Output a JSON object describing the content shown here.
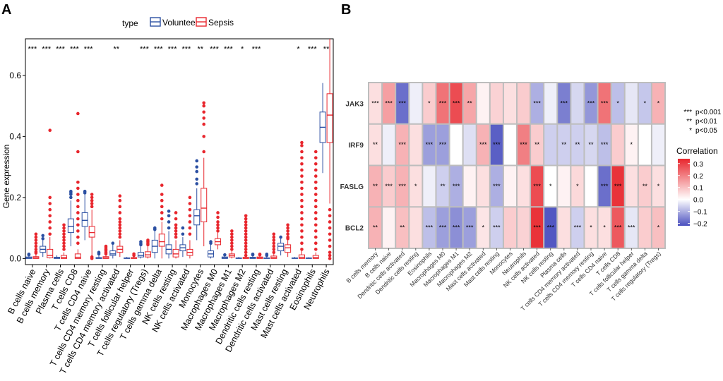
{
  "panel_a_letter": "A",
  "panel_b_letter": "B",
  "chart_data": [
    {
      "type": "box",
      "ylabel": "Gene expression",
      "yticks": [
        "0.0",
        "0.2",
        "0.4",
        "0.6"
      ],
      "ylim": [
        -0.02,
        0.72
      ],
      "legend": {
        "title": "type",
        "groups": [
          "Volunteer",
          "Sepsis"
        ],
        "colors": {
          "Volunteer": "#2b4fa2",
          "Sepsis": "#e8262d"
        }
      },
      "categories": [
        "B cells naive",
        "B cells memory",
        "Plasma cells",
        "T cells CD8",
        "T cells CD4 naive",
        "T cells CD4 memory resting",
        "T cells CD4 memory activated",
        "T cells follicular helper",
        "T cells regulatory (Tregs)",
        "T cells gamma delta",
        "NK cells resting",
        "NK cells activated",
        "Monocytes",
        "Macrophages M0",
        "Macrophages M1",
        "Macrophages M2",
        "Dendritic cells resting",
        "Dendritic cells activated",
        "Mast cells resting",
        "Mast cells activated",
        "Eosinophils",
        "Neutrophils"
      ],
      "significance": [
        "***",
        "***",
        "***",
        "***",
        "***",
        "",
        "**",
        "",
        "***",
        "***",
        "***",
        "***",
        "**",
        "***",
        "***",
        "*",
        "***",
        "",
        "",
        "*",
        "***",
        "**"
      ],
      "volunteer": [
        {
          "q1": 0.0,
          "med": 0.002,
          "q3": 0.005,
          "wlo": 0.0,
          "whi": 0.01,
          "out": [
            0.012,
            0.014
          ]
        },
        {
          "q1": 0.02,
          "med": 0.03,
          "q3": 0.04,
          "wlo": 0.005,
          "whi": 0.06,
          "out": [
            0.065,
            0.075
          ]
        },
        {
          "q1": 0.0,
          "med": 0.002,
          "q3": 0.004,
          "wlo": 0.0,
          "whi": 0.01,
          "out": []
        },
        {
          "q1": 0.085,
          "med": 0.105,
          "q3": 0.13,
          "wlo": 0.04,
          "whi": 0.19,
          "out": [
            0.2,
            0.21,
            0.215,
            0.22
          ]
        },
        {
          "q1": 0.105,
          "med": 0.125,
          "q3": 0.15,
          "wlo": 0.06,
          "whi": 0.21,
          "out": [
            0.215,
            0.22
          ]
        },
        {
          "q1": 0.0,
          "med": 0.001,
          "q3": 0.003,
          "wlo": 0.0,
          "whi": 0.01,
          "out": [
            0.015,
            0.02
          ]
        },
        {
          "q1": 0.01,
          "med": 0.015,
          "q3": 0.025,
          "wlo": 0.0,
          "whi": 0.045,
          "out": [
            0.05
          ]
        },
        {
          "q1": 0.0,
          "med": 0.001,
          "q3": 0.002,
          "wlo": 0.0,
          "whi": 0.005,
          "out": []
        },
        {
          "q1": 0.005,
          "med": 0.01,
          "q3": 0.02,
          "wlo": 0.0,
          "whi": 0.04,
          "out": [
            0.045,
            0.05,
            0.055
          ]
        },
        {
          "q1": 0.02,
          "med": 0.04,
          "q3": 0.06,
          "wlo": 0.0,
          "whi": 0.09,
          "out": [
            0.095,
            0.1
          ]
        },
        {
          "q1": 0.015,
          "med": 0.03,
          "q3": 0.045,
          "wlo": 0.0,
          "whi": 0.09,
          "out": [
            0.1,
            0.12,
            0.14,
            0.155
          ]
        },
        {
          "q1": 0.025,
          "med": 0.035,
          "q3": 0.045,
          "wlo": 0.005,
          "whi": 0.07,
          "out": [
            0.08,
            0.1
          ]
        },
        {
          "q1": 0.11,
          "med": 0.14,
          "q3": 0.16,
          "wlo": 0.06,
          "whi": 0.23,
          "out": [
            0.245,
            0.26,
            0.285,
            0.3,
            0.32
          ]
        },
        {
          "q1": 0.005,
          "med": 0.015,
          "q3": 0.025,
          "wlo": 0.0,
          "whi": 0.045,
          "out": [
            0.05,
            0.055
          ]
        },
        {
          "q1": 0.0,
          "med": 0.002,
          "q3": 0.005,
          "wlo": 0.0,
          "whi": 0.01,
          "out": [
            0.012
          ]
        },
        {
          "q1": 0.0,
          "med": 0.001,
          "q3": 0.002,
          "wlo": 0.0,
          "whi": 0.005,
          "out": []
        },
        {
          "q1": 0.0,
          "med": 0.002,
          "q3": 0.004,
          "wlo": 0.0,
          "whi": 0.01,
          "out": [
            0.012,
            0.014
          ]
        },
        {
          "q1": 0.0,
          "med": 0.001,
          "q3": 0.002,
          "wlo": 0.0,
          "whi": 0.005,
          "out": [
            0.01,
            0.014
          ]
        },
        {
          "q1": 0.025,
          "med": 0.04,
          "q3": 0.05,
          "wlo": 0.01,
          "whi": 0.065,
          "out": [
            0.07
          ]
        },
        {
          "q1": 0.0,
          "med": 0.001,
          "q3": 0.002,
          "wlo": 0.0,
          "whi": 0.005,
          "out": []
        },
        {
          "q1": 0.0,
          "med": 0.001,
          "q3": 0.002,
          "wlo": 0.0,
          "whi": 0.004,
          "out": []
        },
        {
          "q1": 0.38,
          "med": 0.43,
          "q3": 0.48,
          "wlo": 0.28,
          "whi": 0.575,
          "out": []
        }
      ],
      "sepsis": [
        {
          "q1": 0.0,
          "med": 0.002,
          "q3": 0.006,
          "wlo": 0.0,
          "whi": 0.014,
          "out": [
            0.018,
            0.022,
            0.03,
            0.04,
            0.05,
            0.06,
            0.07,
            0.08
          ]
        },
        {
          "q1": 0.002,
          "med": 0.01,
          "q3": 0.03,
          "wlo": 0.0,
          "whi": 0.07,
          "out": [
            0.08,
            0.1,
            0.12,
            0.14,
            0.16,
            0.18,
            0.2,
            0.42
          ]
        },
        {
          "q1": 0.0,
          "med": 0.003,
          "q3": 0.01,
          "wlo": 0.0,
          "whi": 0.02,
          "out": [
            0.03,
            0.04,
            0.05,
            0.06,
            0.07,
            0.08,
            0.09,
            0.1,
            0.11
          ]
        },
        {
          "q1": 0.0,
          "med": 0.004,
          "q3": 0.015,
          "wlo": 0.0,
          "whi": 0.03,
          "out": [
            0.05,
            0.07,
            0.09,
            0.11,
            0.13,
            0.15,
            0.17,
            0.19,
            0.21,
            0.23,
            0.25,
            0.35,
            0.475
          ]
        },
        {
          "q1": 0.07,
          "med": 0.085,
          "q3": 0.105,
          "wlo": 0.01,
          "whi": 0.16,
          "out": [
            0.0,
            0.005,
            0.17,
            0.18,
            0.19,
            0.2,
            0.21
          ]
        },
        {
          "q1": 0.0,
          "med": 0.002,
          "q3": 0.006,
          "wlo": 0.0,
          "whi": 0.012,
          "out": [
            0.015,
            0.02,
            0.025,
            0.03,
            0.035,
            0.04
          ]
        },
        {
          "q1": 0.02,
          "med": 0.03,
          "q3": 0.04,
          "wlo": 0.005,
          "whi": 0.06,
          "out": [
            0.07,
            0.08,
            0.09,
            0.1,
            0.11,
            0.12,
            0.13,
            0.15,
            0.17,
            0.19,
            0.205
          ]
        },
        {
          "q1": 0.0,
          "med": 0.001,
          "q3": 0.003,
          "wlo": 0.0,
          "whi": 0.006,
          "out": [
            0.01,
            0.015
          ]
        },
        {
          "q1": 0.005,
          "med": 0.012,
          "q3": 0.022,
          "wlo": 0.0,
          "whi": 0.04,
          "out": [
            0.045,
            0.05,
            0.055,
            0.06
          ]
        },
        {
          "q1": 0.04,
          "med": 0.055,
          "q3": 0.08,
          "wlo": 0.0,
          "whi": 0.12,
          "out": [
            0.13,
            0.15,
            0.17,
            0.19,
            0.21,
            0.24
          ]
        },
        {
          "q1": 0.005,
          "med": 0.015,
          "q3": 0.03,
          "wlo": 0.0,
          "whi": 0.06,
          "out": [
            0.07,
            0.08,
            0.09,
            0.1,
            0.11,
            0.13,
            0.15
          ]
        },
        {
          "q1": 0.01,
          "med": 0.02,
          "q3": 0.03,
          "wlo": 0.0,
          "whi": 0.06,
          "out": [
            0.08,
            0.1,
            0.12,
            0.14,
            0.16,
            0.18,
            0.2
          ]
        },
        {
          "q1": 0.12,
          "med": 0.165,
          "q3": 0.23,
          "wlo": 0.04,
          "whi": 0.33,
          "out": [
            0.35,
            0.4,
            0.44,
            0.46,
            0.48,
            0.5,
            0.51
          ]
        },
        {
          "q1": 0.045,
          "med": 0.055,
          "q3": 0.065,
          "wlo": 0.03,
          "whi": 0.085,
          "out": [
            0.09,
            0.1,
            0.11,
            0.12,
            0.135,
            0.15
          ]
        },
        {
          "q1": 0.005,
          "med": 0.01,
          "q3": 0.015,
          "wlo": 0.0,
          "whi": 0.025,
          "out": [
            0.03,
            0.04,
            0.05,
            0.06,
            0.07,
            0.08,
            0.09
          ]
        },
        {
          "q1": 0.0,
          "med": 0.001,
          "q3": 0.004,
          "wlo": 0.0,
          "whi": 0.008,
          "out": [
            0.01,
            0.02,
            0.03,
            0.04,
            0.05,
            0.06,
            0.07,
            0.08,
            0.09,
            0.1,
            0.11,
            0.12,
            0.13,
            0.14
          ]
        },
        {
          "q1": 0.0,
          "med": 0.002,
          "q3": 0.005,
          "wlo": 0.0,
          "whi": 0.01,
          "out": [
            0.012,
            0.014
          ]
        },
        {
          "q1": 0.0,
          "med": 0.003,
          "q3": 0.008,
          "wlo": 0.0,
          "whi": 0.015,
          "out": [
            0.02,
            0.03,
            0.04,
            0.05,
            0.06,
            0.07,
            0.08
          ]
        },
        {
          "q1": 0.02,
          "med": 0.035,
          "q3": 0.045,
          "wlo": 0.005,
          "whi": 0.06,
          "out": [
            0.065,
            0.07,
            0.08,
            0.09,
            0.1,
            0.11
          ]
        },
        {
          "q1": 0.0,
          "med": 0.004,
          "q3": 0.012,
          "wlo": 0.0,
          "whi": 0.025,
          "out": [
            0.03,
            0.05,
            0.07,
            0.09,
            0.11,
            0.13,
            0.15,
            0.17,
            0.19,
            0.21,
            0.23,
            0.25,
            0.27,
            0.29,
            0.31,
            0.33,
            0.35,
            0.37,
            0.38
          ]
        },
        {
          "q1": 0.0,
          "med": 0.003,
          "q3": 0.01,
          "wlo": 0.0,
          "whi": 0.02,
          "out": [
            0.03,
            0.05,
            0.07,
            0.09,
            0.11,
            0.13,
            0.15,
            0.17,
            0.19,
            0.21,
            0.23,
            0.25,
            0.27,
            0.29,
            0.31,
            0.33,
            0.35
          ]
        },
        {
          "q1": 0.38,
          "med": 0.47,
          "q3": 0.54,
          "wlo": 0.18,
          "whi": 0.72,
          "out": [
            0.0,
            0.01,
            0.02,
            0.04,
            0.06,
            0.08,
            0.1,
            0.12,
            0.14,
            0.16
          ]
        }
      ]
    },
    {
      "type": "heatmap",
      "rows": [
        "JAK3",
        "IRF9",
        "FASLG",
        "BCL2"
      ],
      "columns": [
        "B cells memory",
        "B cells naive",
        "Dendritic cells activated",
        "Dendritic cells resting",
        "Eosinophils",
        "Macrophages M0",
        "Macrophages M1",
        "Macrophages M2",
        "Mast cells activated",
        "Mast cells resting",
        "Monocytes",
        "Neutrophils",
        "NK cells activated",
        "NK cells resting",
        "Plasma cells",
        "T cells CD4 memory activated",
        "T cells CD4 memory resting",
        "T cells CD4 naive",
        "T cells CD8",
        "T cells follicular helper",
        "T cells gamma delta",
        "T cells regulatory (Tregs)"
      ],
      "values": [
        [
          0.05,
          0.15,
          -0.18,
          -0.02,
          0.08,
          0.22,
          0.28,
          0.14,
          0.02,
          0.07,
          0.05,
          0.08,
          -0.1,
          -0.02,
          -0.16,
          -0.05,
          -0.13,
          0.22,
          -0.08,
          -0.03,
          -0.07,
          0.12
        ],
        [
          0.05,
          -0.02,
          0.12,
          0.05,
          -0.12,
          -0.12,
          0.0,
          -0.04,
          0.12,
          -0.2,
          0.0,
          0.2,
          0.08,
          -0.06,
          -0.06,
          -0.06,
          -0.05,
          -0.08,
          0.08,
          0.02,
          0.0,
          -0.02
        ],
        [
          0.12,
          0.08,
          0.12,
          0.05,
          -0.02,
          -0.06,
          -0.1,
          0.02,
          0.05,
          -0.1,
          0.02,
          0.05,
          0.28,
          0.0,
          0.02,
          0.06,
          0.0,
          -0.18,
          0.32,
          0.05,
          0.08,
          0.05
        ],
        [
          0.12,
          0.02,
          0.1,
          0.05,
          -0.08,
          -0.12,
          -0.14,
          -0.12,
          0.04,
          -0.06,
          0.08,
          0.07,
          0.32,
          -0.21,
          0.05,
          -0.06,
          0.05,
          0.05,
          0.26,
          -0.03,
          0.08,
          0.1
        ]
      ],
      "stars": [
        [
          "***",
          "***",
          "***",
          "",
          "*",
          "***",
          "***",
          "**",
          "",
          "",
          "",
          "",
          "***",
          "",
          "***",
          "",
          "***",
          "***",
          "*",
          "",
          "*",
          "*"
        ],
        [
          "**",
          "",
          "***",
          "",
          "***",
          "***",
          "",
          "",
          "***",
          "***",
          "",
          "***",
          "**",
          "",
          "**",
          "**",
          "**",
          "***",
          "",
          "*",
          "",
          ""
        ],
        [
          "**",
          "***",
          "***",
          "*",
          "",
          "**",
          "***",
          "",
          "",
          "***",
          "",
          "",
          "***",
          "*",
          "",
          "*",
          "",
          "***",
          "***",
          "",
          "**",
          "*"
        ],
        [
          "**",
          "",
          "**",
          "",
          "***",
          "***",
          "***",
          "***",
          "*",
          "***",
          "",
          "",
          "***",
          "***",
          "",
          "***",
          "*",
          "*",
          "***",
          "***",
          "",
          "*"
        ]
      ],
      "colorbar": {
        "title": "Correlation",
        "ticks": [
          "0.3",
          "0.2",
          "0.1",
          "0.0",
          "−0.1",
          "−0.2"
        ],
        "range": [
          -0.22,
          0.34
        ],
        "low_color": "#4a4fbf",
        "mid_color": "#ffffff",
        "high_color": "#e8262d"
      },
      "significance_key": [
        {
          "stars": "***",
          "label": "p<0.001"
        },
        {
          "stars": "**",
          "label": "p<0.01"
        },
        {
          "stars": "*",
          "label": "p<0.05"
        }
      ]
    }
  ]
}
